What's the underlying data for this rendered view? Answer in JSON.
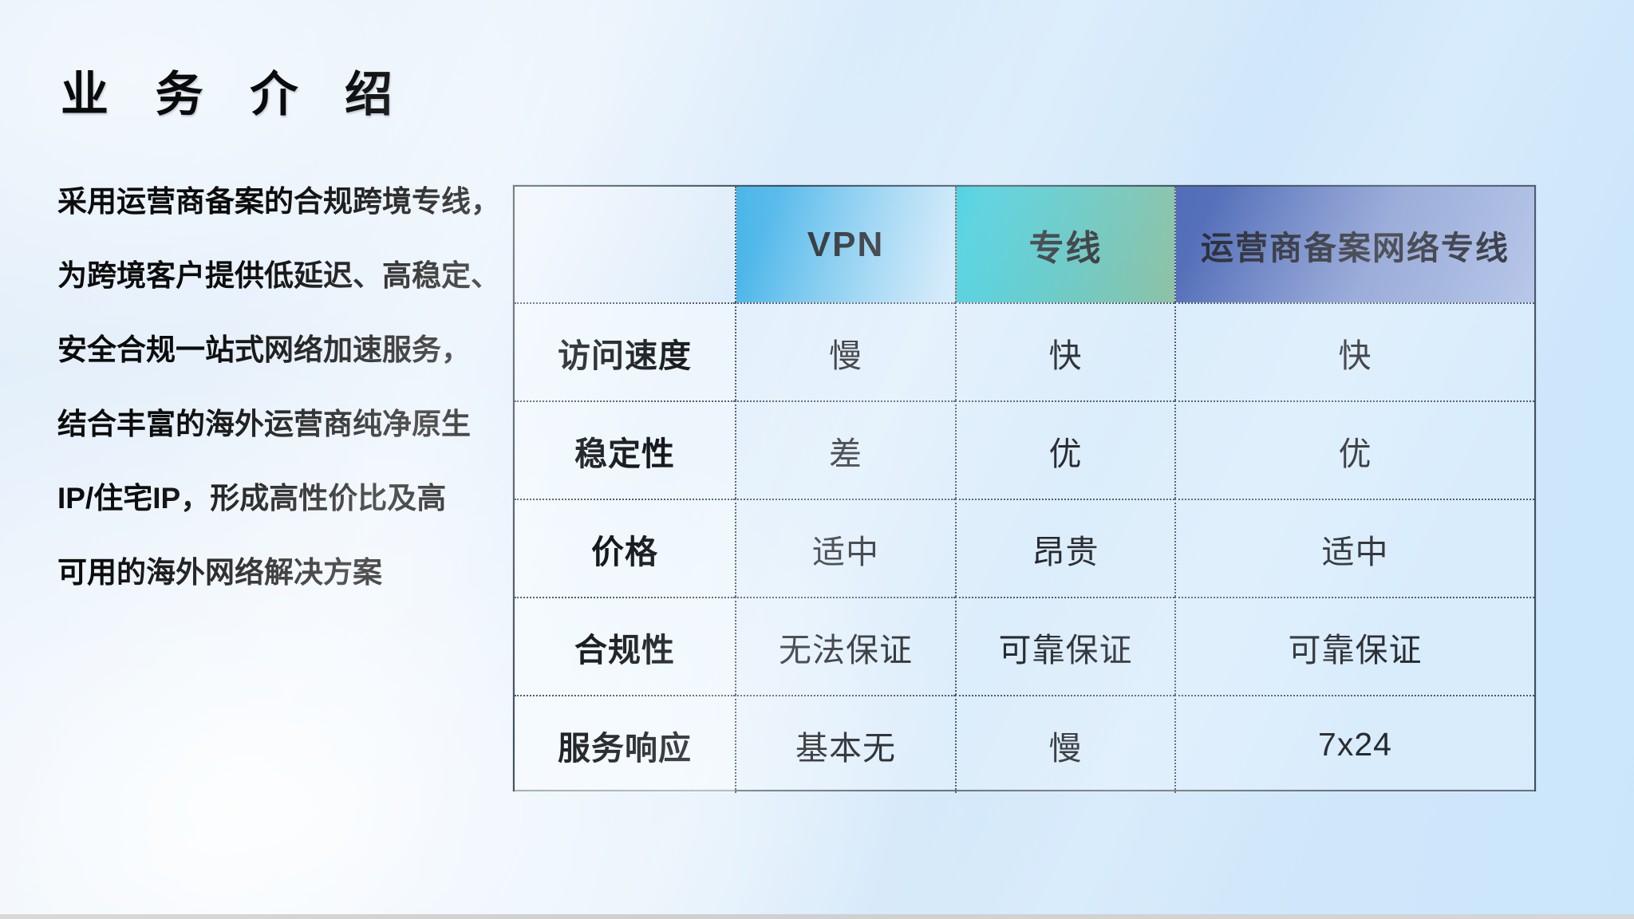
{
  "slide": {
    "title": "业 务 介 绍",
    "intro_lines": [
      "采用运营商备案的合规跨境专线，",
      "为跨境客户提供低延迟、高稳定、",
      "安全合规一站式网络加速服务，",
      "结合丰富的海外运营商纯净原生",
      "IP/住宅IP，形成高性价比及高",
      "可用的海外网络解决方案"
    ]
  },
  "table": {
    "headers": [
      "",
      "VPN",
      "专线",
      "运营商备案网络专线"
    ],
    "rows": [
      {
        "label": "访问速度",
        "values": [
          "慢",
          "快",
          "快"
        ]
      },
      {
        "label": "稳定性",
        "values": [
          "差",
          "优",
          "优"
        ]
      },
      {
        "label": "价格",
        "values": [
          "适中",
          "昂贵",
          "适中"
        ]
      },
      {
        "label": "合规性",
        "values": [
          "无法保证",
          "可靠保证",
          "可靠保证"
        ]
      },
      {
        "label": "服务响应",
        "values": [
          "基本无",
          "慢",
          "7x24"
        ]
      }
    ]
  },
  "colors": {
    "vpn_start": "#41b2e8",
    "vpn_end": "#cfe8fa",
    "dl_start": "#2bc9de",
    "dl_end": "#8fc2a6",
    "carrier_start": "#4b67b5",
    "carrier_end": "#b5c5e8"
  }
}
